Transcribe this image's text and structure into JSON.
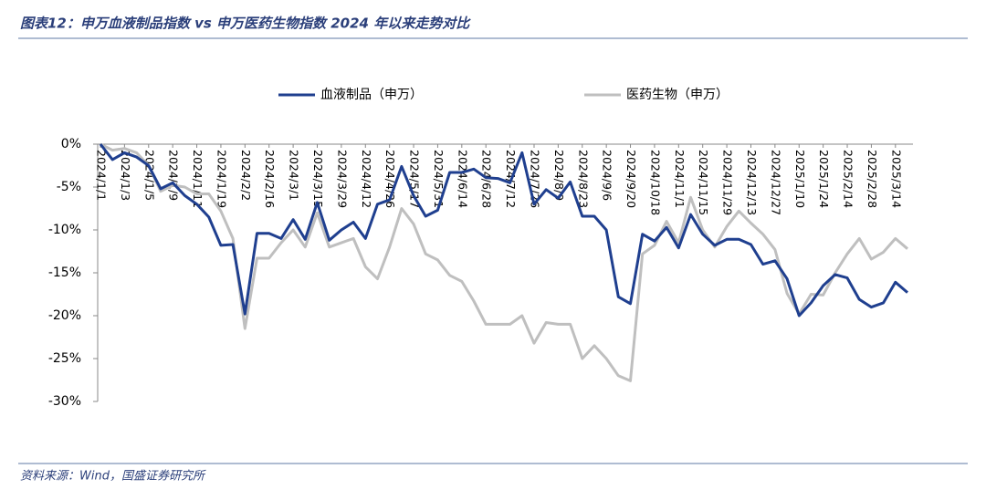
{
  "title": "图表12：申万血液制品指数 vs 申万医药生物指数 2024 年以来走势对比",
  "source": "资料来源：Wind，国盛证券研究所",
  "chart_data": {
    "type": "line",
    "categories": [
      "2024/1/1",
      null,
      "2024/1/3",
      null,
      "2024/1/5",
      null,
      "2024/1/9",
      null,
      "2024/1/11",
      null,
      "2024/1/19",
      null,
      "2024/2/2",
      null,
      "2024/2/16",
      null,
      "2024/3/1",
      null,
      "2024/3/15",
      null,
      "2024/3/29",
      null,
      "2024/4/12",
      null,
      "2024/4/26",
      null,
      "2024/5/17",
      null,
      "2024/5/31",
      null,
      "2024/6/14",
      null,
      "2024/6/28",
      null,
      "2024/7/12",
      null,
      "2024/7/26",
      null,
      "2024/8/9",
      null,
      "2024/8/23",
      null,
      "2024/9/6",
      null,
      "2024/9/20",
      null,
      "2024/10/18",
      null,
      "2024/11/1",
      null,
      "2024/11/15",
      null,
      "2024/11/29",
      null,
      "2024/12/13",
      null,
      "2024/12/27",
      null,
      "2025/1/10",
      null,
      "2025/1/24",
      null,
      "2025/2/14",
      null,
      "2025/2/28",
      null,
      "2025/3/14",
      null
    ],
    "series": [
      {
        "name": "血液制品（申万）",
        "color": "#1f3f8f",
        "values": [
          0,
          -1.8,
          -1.0,
          -1.5,
          -2.5,
          -5.2,
          -4.5,
          -6,
          -7,
          -8.5,
          -11.8,
          -11.7,
          -19.8,
          -10.4,
          -10.4,
          -11,
          -8.8,
          -11.1,
          -6.8,
          -11.2,
          -10,
          -9.1,
          -11,
          -7,
          -6.5,
          -2.6,
          -6,
          -8.4,
          -7.7,
          -3.3,
          -3.3,
          -2.9,
          -3.9,
          -4,
          -4.5,
          -1,
          -7,
          -5.3,
          -6.3,
          -4.4,
          -8.4,
          -8.4,
          -10,
          -17.8,
          -18.6,
          -10.5,
          -11.3,
          -9.7,
          -12.1,
          -8.2,
          -10.5,
          -11.8,
          -11.1,
          -11.1,
          -11.7,
          -14,
          -13.6,
          -15.7,
          -20,
          -18.5,
          -16.5,
          -15.2,
          -15.6,
          -18.1,
          -19,
          -18.5,
          -16.1,
          -17.3
        ]
      },
      {
        "name": "医药生物（申万）",
        "color": "#bfbfbf",
        "values": [
          0,
          -0.7,
          -0.5,
          -1,
          -2.5,
          -5.5,
          -4.8,
          -5,
          -5.8,
          -5.8,
          -7.8,
          -11,
          -21.5,
          -13.3,
          -13.3,
          -11.5,
          -10,
          -12,
          -8,
          -12,
          -11.5,
          -11,
          -14.3,
          -15.7,
          -12,
          -7.5,
          -9.3,
          -12.8,
          -13.5,
          -15.3,
          -16,
          -18.3,
          -21,
          -21,
          -21,
          -20,
          -23.2,
          -20.8,
          -21,
          -21,
          -25,
          -23.5,
          -25,
          -27,
          -27.6,
          -12.8,
          -11.8,
          -9,
          -11.5,
          -6.2,
          -10,
          -12,
          -9.6,
          -7.8,
          -9.2,
          -10.5,
          -12.3,
          -17.4,
          -19.8,
          -17.5,
          -17.6,
          -15,
          -12.8,
          -11,
          -13.4,
          -12.6,
          -11,
          -12.2
        ]
      }
    ],
    "ylim": [
      -30,
      0
    ],
    "yticks": [
      {
        "value": 0,
        "label": "0%"
      },
      {
        "value": -5,
        "label": "-5%"
      },
      {
        "value": -10,
        "label": "-10%"
      },
      {
        "value": -15,
        "label": "-15%"
      },
      {
        "value": -20,
        "label": "-20%"
      },
      {
        "value": -25,
        "label": "-25%"
      },
      {
        "value": -30,
        "label": "-30%"
      }
    ],
    "legend": "top"
  }
}
